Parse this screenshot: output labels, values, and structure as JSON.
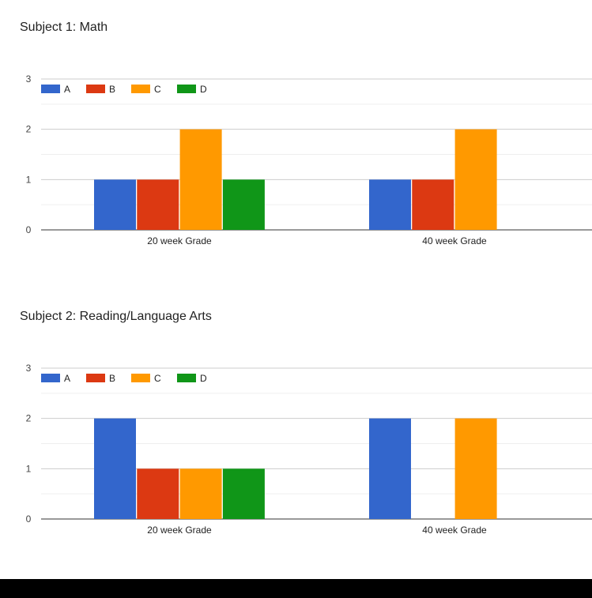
{
  "chart_data": [
    {
      "type": "bar",
      "title": "Subject 1: Math",
      "xlabel": "",
      "ylabel": "",
      "ylim": [
        0,
        3
      ],
      "yticks": [
        "0",
        "1",
        "2",
        "3"
      ],
      "grid": true,
      "legend_position": "top-left",
      "categories": [
        "20 week Grade",
        "40 week Grade"
      ],
      "series": [
        {
          "name": "A",
          "color": "#3366cc",
          "values": [
            1,
            1
          ]
        },
        {
          "name": "B",
          "color": "#dc3912",
          "values": [
            1,
            1
          ]
        },
        {
          "name": "C",
          "color": "#ff9900",
          "values": [
            2,
            2
          ]
        },
        {
          "name": "D",
          "color": "#109618",
          "values": [
            1,
            0
          ]
        }
      ]
    },
    {
      "type": "bar",
      "title": "Subject 2: Reading/Language Arts",
      "xlabel": "",
      "ylabel": "",
      "ylim": [
        0,
        3
      ],
      "yticks": [
        "0",
        "1",
        "2",
        "3"
      ],
      "grid": true,
      "legend_position": "top-left",
      "categories": [
        "20 week Grade",
        "40 week Grade"
      ],
      "series": [
        {
          "name": "A",
          "color": "#3366cc",
          "values": [
            2,
            2
          ]
        },
        {
          "name": "B",
          "color": "#dc3912",
          "values": [
            1,
            0
          ]
        },
        {
          "name": "C",
          "color": "#ff9900",
          "values": [
            1,
            2
          ]
        },
        {
          "name": "D",
          "color": "#109618",
          "values": [
            1,
            0
          ]
        }
      ]
    }
  ]
}
